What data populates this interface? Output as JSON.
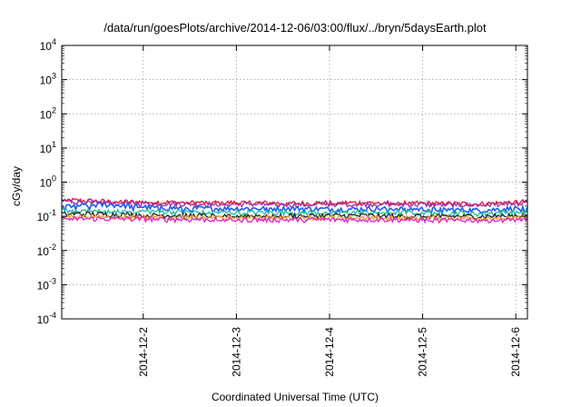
{
  "chart_data": {
    "type": "line",
    "title": "/data/run/goesPlots/archive/2014-12-06/03:00/flux/../bryn/5daysEarth.plot",
    "xlabel": "Coordinated Universal Time (UTC)",
    "ylabel": "cGy/day",
    "y_scale": "log",
    "ylim": [
      0.0001,
      10000
    ],
    "y_ticks": [
      {
        "value": 0.0001,
        "base": "10",
        "exp": "-4"
      },
      {
        "value": 0.001,
        "base": "10",
        "exp": "-3"
      },
      {
        "value": 0.01,
        "base": "10",
        "exp": "-2"
      },
      {
        "value": 0.1,
        "base": "10",
        "exp": "-1"
      },
      {
        "value": 1,
        "base": "10",
        "exp": "0"
      },
      {
        "value": 10,
        "base": "10",
        "exp": "1"
      },
      {
        "value": 100,
        "base": "10",
        "exp": "2"
      },
      {
        "value": 1000,
        "base": "10",
        "exp": "3"
      },
      {
        "value": 10000,
        "base": "10",
        "exp": "4"
      }
    ],
    "xlim": [
      "2014-12-01T03:00",
      "2014-12-06T03:00"
    ],
    "x_ticks": [
      "2014-12-2",
      "2014-12-3",
      "2014-12-4",
      "2014-12-5",
      "2014-12-6"
    ],
    "grid": true,
    "x": [
      "2014-12-01T03:00",
      "2014-12-01T15:00",
      "2014-12-02T03:00",
      "2014-12-02T15:00",
      "2014-12-03T03:00",
      "2014-12-03T15:00",
      "2014-12-04T03:00",
      "2014-12-04T15:00",
      "2014-12-05T03:00",
      "2014-12-05T15:00",
      "2014-12-06T03:00"
    ],
    "series": [
      {
        "color": "#e8102a",
        "values": [
          0.3,
          0.27,
          0.26,
          0.25,
          0.25,
          0.24,
          0.25,
          0.25,
          0.24,
          0.23,
          0.27
        ]
      },
      {
        "color": "#9b2faa",
        "values": [
          0.28,
          0.25,
          0.24,
          0.23,
          0.23,
          0.22,
          0.23,
          0.23,
          0.22,
          0.22,
          0.25
        ]
      },
      {
        "color": "#1f5ff0",
        "values": [
          0.2,
          0.22,
          0.18,
          0.17,
          0.17,
          0.17,
          0.16,
          0.17,
          0.16,
          0.15,
          0.18
        ]
      },
      {
        "color": "#1bbf9e",
        "values": [
          0.15,
          0.14,
          0.14,
          0.13,
          0.13,
          0.13,
          0.13,
          0.13,
          0.13,
          0.12,
          0.14
        ]
      },
      {
        "color": "#222222",
        "values": [
          0.12,
          0.115,
          0.11,
          0.105,
          0.105,
          0.105,
          0.105,
          0.105,
          0.1,
          0.1,
          0.11
        ]
      },
      {
        "color": "#e8a030",
        "values": [
          0.1,
          0.098,
          0.096,
          0.094,
          0.093,
          0.092,
          0.092,
          0.093,
          0.09,
          0.09,
          0.095
        ]
      },
      {
        "color": "#e020c8",
        "values": [
          0.085,
          0.085,
          0.083,
          0.081,
          0.08,
          0.08,
          0.08,
          0.081,
          0.078,
          0.078,
          0.082
        ]
      }
    ]
  }
}
